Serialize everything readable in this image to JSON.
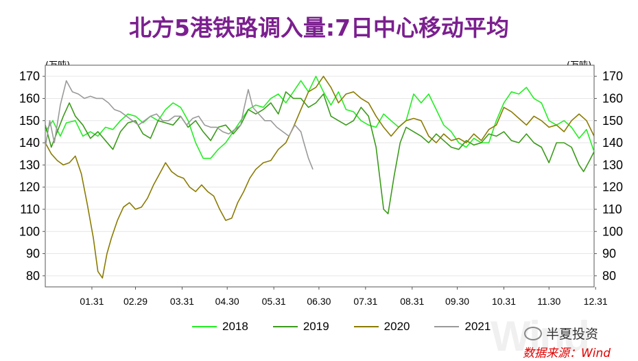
{
  "title": "北方5港铁路调入量:7日中心移动平均",
  "unit_left": "(万吨)",
  "unit_right": "(万吨)",
  "brand": "半夏投资",
  "source": "数据来源：Wind",
  "watermark": "Wind",
  "chart_data": {
    "type": "line",
    "title": "北方5港铁路调入量:7日中心移动平均",
    "ylabel": "(万吨)",
    "ylim": [
      75,
      175
    ],
    "yticks": [
      80,
      90,
      100,
      110,
      120,
      130,
      140,
      150,
      160,
      170
    ],
    "xlim": [
      0,
      365
    ],
    "x_ticks": [
      {
        "label": "01.31",
        "day": 31
      },
      {
        "label": "02.29",
        "day": 60
      },
      {
        "label": "03.31",
        "day": 91
      },
      {
        "label": "04.30",
        "day": 121
      },
      {
        "label": "05.31",
        "day": 152
      },
      {
        "label": "06.30",
        "day": 182
      },
      {
        "label": "07.31",
        "day": 213
      },
      {
        "label": "08.31",
        "day": 244
      },
      {
        "label": "09.30",
        "day": 274
      },
      {
        "label": "10.31",
        "day": 305
      },
      {
        "label": "11.30",
        "day": 335
      },
      {
        "label": "12.31",
        "day": 366
      }
    ],
    "grid": true,
    "legend_position": "bottom",
    "series": [
      {
        "name": "2018",
        "color": "#22ee22",
        "points": [
          [
            0,
            145
          ],
          [
            5,
            150
          ],
          [
            10,
            143
          ],
          [
            14,
            149
          ],
          [
            20,
            150
          ],
          [
            25,
            143
          ],
          [
            30,
            145
          ],
          [
            35,
            143
          ],
          [
            40,
            147
          ],
          [
            45,
            146
          ],
          [
            50,
            150
          ],
          [
            55,
            153
          ],
          [
            60,
            152
          ],
          [
            65,
            149
          ],
          [
            70,
            152
          ],
          [
            75,
            150
          ],
          [
            80,
            155
          ],
          [
            85,
            158
          ],
          [
            90,
            156
          ],
          [
            95,
            150
          ],
          [
            100,
            140
          ],
          [
            105,
            133
          ],
          [
            110,
            133
          ],
          [
            115,
            137
          ],
          [
            120,
            140
          ],
          [
            125,
            145
          ],
          [
            130,
            150
          ],
          [
            135,
            155
          ],
          [
            140,
            157
          ],
          [
            145,
            156
          ],
          [
            150,
            160
          ],
          [
            155,
            162
          ],
          [
            160,
            158
          ],
          [
            165,
            163
          ],
          [
            170,
            168
          ],
          [
            175,
            163
          ],
          [
            180,
            170
          ],
          [
            185,
            163
          ],
          [
            190,
            157
          ],
          [
            195,
            163
          ],
          [
            200,
            155
          ],
          [
            205,
            154
          ],
          [
            210,
            150
          ],
          [
            215,
            148
          ],
          [
            220,
            147
          ],
          [
            225,
            153
          ],
          [
            230,
            150
          ],
          [
            235,
            147
          ],
          [
            240,
            150
          ],
          [
            245,
            162
          ],
          [
            250,
            158
          ],
          [
            255,
            162
          ],
          [
            260,
            155
          ],
          [
            265,
            148
          ],
          [
            270,
            145
          ],
          [
            275,
            140
          ],
          [
            280,
            138
          ],
          [
            285,
            142
          ],
          [
            290,
            140
          ],
          [
            295,
            140
          ],
          [
            300,
            150
          ],
          [
            305,
            158
          ],
          [
            310,
            163
          ],
          [
            315,
            162
          ],
          [
            320,
            165
          ],
          [
            325,
            160
          ],
          [
            330,
            158
          ],
          [
            335,
            150
          ],
          [
            340,
            148
          ],
          [
            345,
            150
          ],
          [
            350,
            147
          ],
          [
            355,
            142
          ],
          [
            360,
            146
          ],
          [
            365,
            136
          ]
        ]
      },
      {
        "name": "2019",
        "color": "#3a9a1a",
        "points": [
          [
            0,
            148
          ],
          [
            4,
            138
          ],
          [
            8,
            145
          ],
          [
            12,
            152
          ],
          [
            16,
            158
          ],
          [
            20,
            152
          ],
          [
            25,
            148
          ],
          [
            30,
            142
          ],
          [
            35,
            145
          ],
          [
            40,
            141
          ],
          [
            45,
            137
          ],
          [
            50,
            145
          ],
          [
            55,
            149
          ],
          [
            60,
            150
          ],
          [
            65,
            144
          ],
          [
            70,
            142
          ],
          [
            75,
            150
          ],
          [
            80,
            149
          ],
          [
            85,
            148
          ],
          [
            90,
            152
          ],
          [
            95,
            147
          ],
          [
            100,
            150
          ],
          [
            105,
            145
          ],
          [
            110,
            141
          ],
          [
            115,
            147
          ],
          [
            120,
            148
          ],
          [
            125,
            144
          ],
          [
            130,
            148
          ],
          [
            135,
            155
          ],
          [
            140,
            153
          ],
          [
            145,
            155
          ],
          [
            150,
            158
          ],
          [
            155,
            153
          ],
          [
            160,
            163
          ],
          [
            165,
            160
          ],
          [
            170,
            160
          ],
          [
            175,
            156
          ],
          [
            180,
            158
          ],
          [
            185,
            162
          ],
          [
            190,
            152
          ],
          [
            195,
            150
          ],
          [
            200,
            148
          ],
          [
            205,
            150
          ],
          [
            210,
            156
          ],
          [
            215,
            152
          ],
          [
            220,
            138
          ],
          [
            225,
            110
          ],
          [
            228,
            108
          ],
          [
            232,
            125
          ],
          [
            236,
            140
          ],
          [
            240,
            147
          ],
          [
            245,
            145
          ],
          [
            250,
            143
          ],
          [
            255,
            140
          ],
          [
            260,
            144
          ],
          [
            265,
            141
          ],
          [
            270,
            138
          ],
          [
            275,
            137
          ],
          [
            280,
            141
          ],
          [
            285,
            139
          ],
          [
            290,
            140
          ],
          [
            295,
            144
          ],
          [
            300,
            143
          ],
          [
            305,
            145
          ],
          [
            310,
            141
          ],
          [
            315,
            140
          ],
          [
            320,
            144
          ],
          [
            325,
            140
          ],
          [
            330,
            138
          ],
          [
            335,
            131
          ],
          [
            340,
            140
          ],
          [
            345,
            140
          ],
          [
            350,
            138
          ],
          [
            355,
            130
          ],
          [
            358,
            127
          ],
          [
            362,
            132
          ],
          [
            365,
            136
          ]
        ]
      },
      {
        "name": "2020",
        "color": "#8a7a00",
        "points": [
          [
            0,
            140
          ],
          [
            4,
            135
          ],
          [
            8,
            132
          ],
          [
            12,
            130
          ],
          [
            16,
            131
          ],
          [
            20,
            134
          ],
          [
            24,
            126
          ],
          [
            28,
            112
          ],
          [
            32,
            97
          ],
          [
            35,
            82
          ],
          [
            38,
            79
          ],
          [
            41,
            90
          ],
          [
            44,
            97
          ],
          [
            48,
            105
          ],
          [
            52,
            111
          ],
          [
            56,
            113
          ],
          [
            60,
            110
          ],
          [
            64,
            111
          ],
          [
            68,
            115
          ],
          [
            72,
            121
          ],
          [
            76,
            126
          ],
          [
            80,
            131
          ],
          [
            84,
            127
          ],
          [
            88,
            125
          ],
          [
            92,
            124
          ],
          [
            96,
            120
          ],
          [
            100,
            118
          ],
          [
            104,
            121
          ],
          [
            108,
            118
          ],
          [
            112,
            116
          ],
          [
            116,
            110
          ],
          [
            120,
            105
          ],
          [
            124,
            106
          ],
          [
            128,
            113
          ],
          [
            132,
            118
          ],
          [
            136,
            124
          ],
          [
            140,
            128
          ],
          [
            145,
            131
          ],
          [
            150,
            132
          ],
          [
            155,
            137
          ],
          [
            160,
            140
          ],
          [
            165,
            147
          ],
          [
            170,
            155
          ],
          [
            175,
            163
          ],
          [
            180,
            165
          ],
          [
            185,
            170
          ],
          [
            190,
            165
          ],
          [
            195,
            158
          ],
          [
            200,
            162
          ],
          [
            205,
            163
          ],
          [
            210,
            160
          ],
          [
            215,
            158
          ],
          [
            220,
            152
          ],
          [
            225,
            147
          ],
          [
            230,
            143
          ],
          [
            235,
            147
          ],
          [
            240,
            150
          ],
          [
            245,
            151
          ],
          [
            250,
            150
          ],
          [
            255,
            143
          ],
          [
            260,
            140
          ],
          [
            265,
            144
          ],
          [
            270,
            141
          ],
          [
            275,
            142
          ],
          [
            280,
            140
          ],
          [
            285,
            144
          ],
          [
            290,
            141
          ],
          [
            295,
            146
          ],
          [
            300,
            148
          ],
          [
            305,
            156
          ],
          [
            310,
            154
          ],
          [
            315,
            151
          ],
          [
            320,
            148
          ],
          [
            325,
            152
          ],
          [
            330,
            150
          ],
          [
            335,
            147
          ],
          [
            340,
            148
          ],
          [
            345,
            145
          ],
          [
            350,
            150
          ],
          [
            355,
            153
          ],
          [
            360,
            150
          ],
          [
            365,
            143
          ]
        ]
      },
      {
        "name": "2021",
        "color": "#999999",
        "points": [
          [
            0,
            138
          ],
          [
            3,
            150
          ],
          [
            6,
            140
          ],
          [
            10,
            157
          ],
          [
            14,
            168
          ],
          [
            18,
            163
          ],
          [
            22,
            162
          ],
          [
            26,
            160
          ],
          [
            30,
            161
          ],
          [
            34,
            160
          ],
          [
            38,
            160
          ],
          [
            42,
            158
          ],
          [
            46,
            155
          ],
          [
            50,
            154
          ],
          [
            54,
            152
          ],
          [
            58,
            150
          ],
          [
            62,
            148
          ],
          [
            66,
            150
          ],
          [
            70,
            152
          ],
          [
            74,
            153
          ],
          [
            78,
            150
          ],
          [
            82,
            150
          ],
          [
            86,
            152
          ],
          [
            90,
            152
          ],
          [
            94,
            148
          ],
          [
            98,
            151
          ],
          [
            102,
            152
          ],
          [
            106,
            148
          ],
          [
            110,
            147
          ],
          [
            114,
            147
          ],
          [
            118,
            145
          ],
          [
            122,
            144
          ],
          [
            126,
            146
          ],
          [
            130,
            148
          ],
          [
            132,
            155
          ],
          [
            135,
            164
          ],
          [
            138,
            156
          ],
          [
            142,
            153
          ],
          [
            146,
            150
          ],
          [
            150,
            150
          ],
          [
            154,
            147
          ],
          [
            158,
            145
          ],
          [
            162,
            143
          ],
          [
            166,
            148
          ],
          [
            170,
            145
          ],
          [
            172,
            140
          ],
          [
            175,
            133
          ],
          [
            178,
            128
          ]
        ]
      }
    ]
  }
}
